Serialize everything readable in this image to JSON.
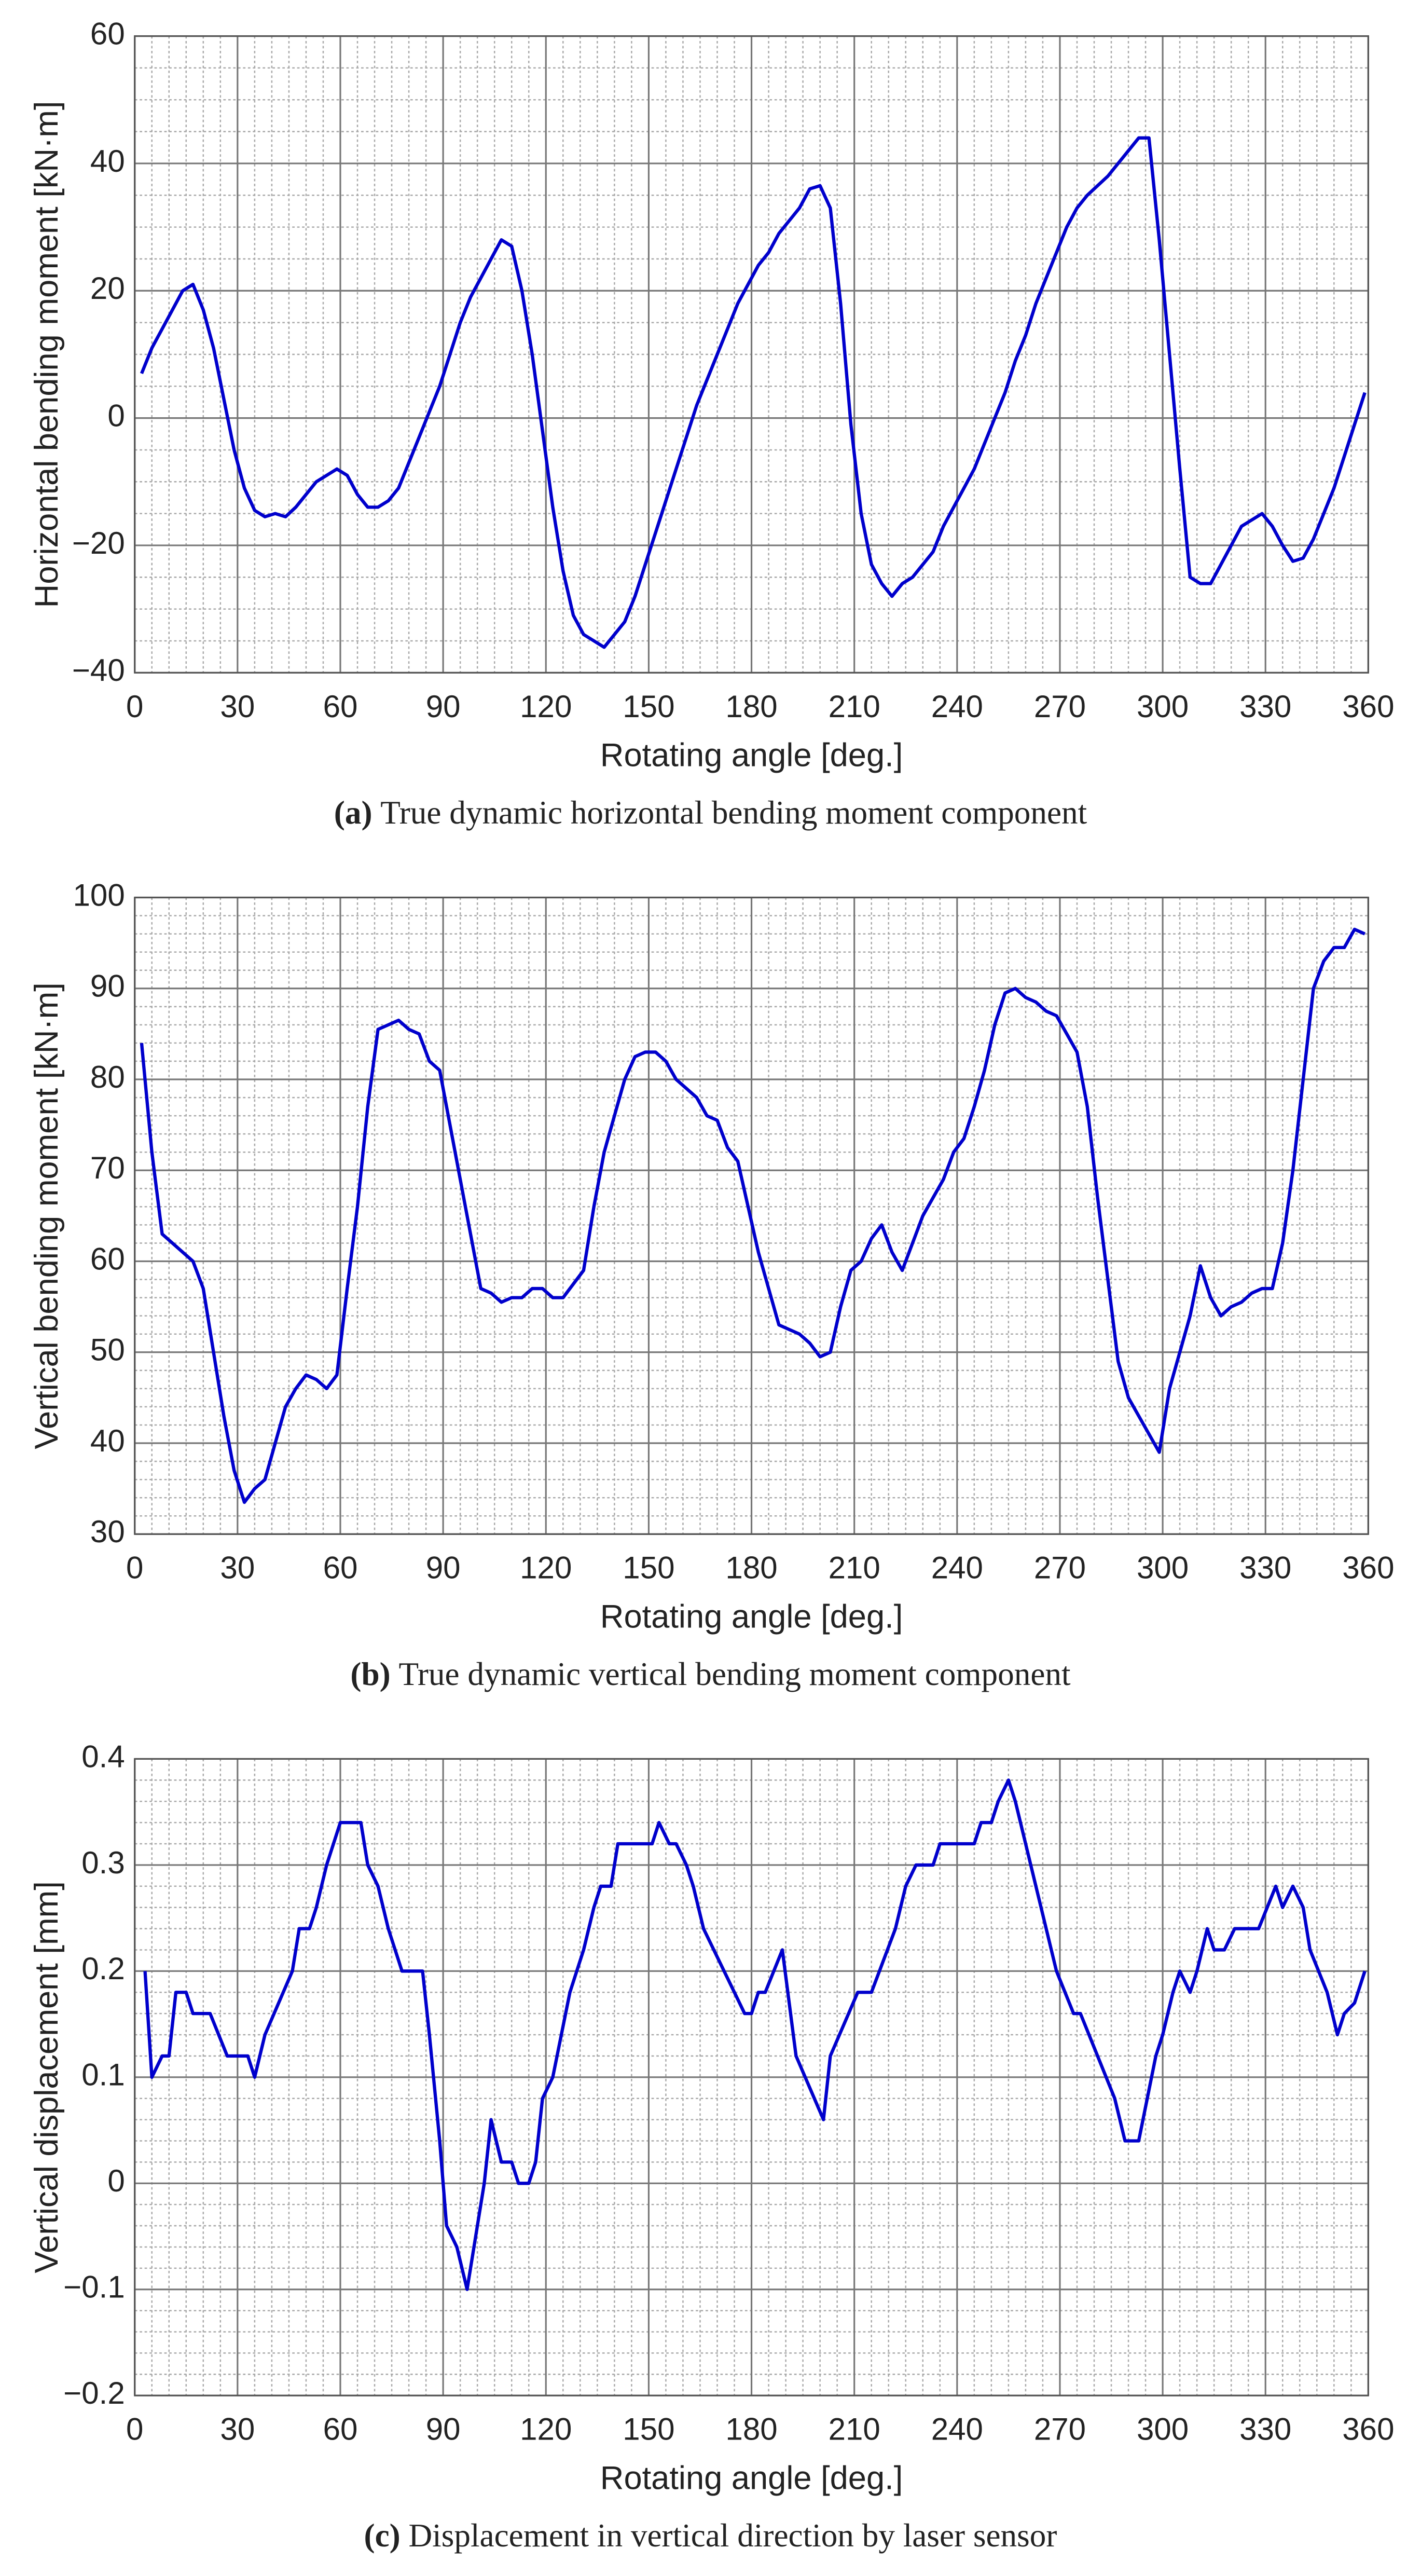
{
  "chart_data": [
    {
      "type": "line",
      "caption_label": "(a)",
      "caption": "True dynamic horizontal bending moment component",
      "xlabel": "Rotating angle [deg.]",
      "ylabel": "Horizontal bending moment [kN·m]",
      "xlim": [
        0,
        360
      ],
      "ylim": [
        -40,
        60
      ],
      "xticks": [
        0,
        30,
        60,
        90,
        120,
        150,
        180,
        210,
        240,
        270,
        300,
        330,
        360
      ],
      "yticks": [
        {
          "value": -40,
          "label": "−40"
        },
        {
          "value": -20,
          "label": "−20"
        },
        0,
        20,
        40,
        60
      ],
      "grid": true,
      "color": "#0000cc",
      "x": [
        2,
        5,
        8,
        11,
        14,
        17,
        20,
        23,
        26,
        29,
        32,
        35,
        38,
        41,
        44,
        47,
        50,
        53,
        56,
        59,
        62,
        65,
        68,
        71,
        74,
        77,
        80,
        83,
        86,
        89,
        92,
        95,
        98,
        101,
        104,
        107,
        110,
        113,
        116,
        119,
        122,
        125,
        128,
        131,
        134,
        137,
        140,
        143,
        146,
        149,
        152,
        155,
        158,
        161,
        164,
        167,
        170,
        173,
        176,
        179,
        182,
        185,
        188,
        191,
        194,
        197,
        200,
        203,
        206,
        209,
        212,
        215,
        218,
        221,
        224,
        227,
        230,
        233,
        236,
        239,
        242,
        245,
        248,
        251,
        254,
        257,
        260,
        263,
        266,
        269,
        272,
        275,
        278,
        281,
        284,
        287,
        290,
        293,
        296,
        299,
        302,
        305,
        308,
        311,
        314,
        317,
        320,
        323,
        326,
        329,
        332,
        335,
        338,
        341,
        344,
        347,
        350,
        353,
        356,
        359
      ],
      "values": [
        7,
        11,
        14,
        17,
        20,
        21,
        17,
        11,
        3,
        -5,
        -11,
        -14.5,
        -15.5,
        -15,
        -15.5,
        -14,
        -12,
        -10,
        -9,
        -8,
        -9,
        -12,
        -14,
        -14,
        -13,
        -11,
        -7,
        -3,
        1,
        5,
        10,
        15,
        19,
        22,
        25,
        28,
        27,
        20,
        10,
        -2,
        -14,
        -24,
        -31,
        -34,
        -35,
        -36,
        -34,
        -32,
        -28,
        -23,
        -18,
        -13,
        -8,
        -3,
        2,
        6,
        10,
        14,
        18,
        21,
        24,
        26,
        29,
        31,
        33,
        36,
        36.5,
        33,
        18,
        -1,
        -15,
        -23,
        -26,
        -28,
        -26,
        -25,
        -23,
        -21,
        -17,
        -14,
        -11,
        -8,
        -4,
        0,
        4,
        9,
        13,
        18,
        22,
        26,
        30,
        33,
        35,
        36.5,
        38,
        40,
        42,
        44,
        44,
        28,
        10,
        -8,
        -25,
        -26,
        -26,
        -23,
        -20,
        -17,
        -16,
        -15,
        -17,
        -20,
        -22.5,
        -22,
        -19,
        -15,
        -11,
        -6,
        -1,
        4
      ]
    },
    {
      "type": "line",
      "caption_label": "(b)",
      "caption": "True dynamic vertical bending moment component",
      "xlabel": "Rotating angle [deg.]",
      "ylabel": "Vertical bending moment [kN·m]",
      "xlim": [
        0,
        360
      ],
      "ylim": [
        30,
        100
      ],
      "xticks": [
        0,
        30,
        60,
        90,
        120,
        150,
        180,
        210,
        240,
        270,
        300,
        330,
        360
      ],
      "yticks": [
        30,
        40,
        50,
        60,
        70,
        80,
        90,
        100
      ],
      "grid": true,
      "color": "#0000cc",
      "x": [
        2,
        5,
        8,
        11,
        14,
        17,
        20,
        23,
        26,
        29,
        32,
        35,
        38,
        41,
        44,
        47,
        50,
        53,
        56,
        59,
        62,
        65,
        68,
        71,
        74,
        77,
        80,
        83,
        86,
        89,
        92,
        95,
        98,
        101,
        104,
        107,
        110,
        113,
        116,
        119,
        122,
        125,
        128,
        131,
        134,
        137,
        140,
        143,
        146,
        149,
        152,
        155,
        158,
        161,
        164,
        167,
        170,
        173,
        176,
        179,
        182,
        185,
        188,
        191,
        194,
        197,
        200,
        203,
        206,
        209,
        212,
        215,
        218,
        221,
        224,
        227,
        230,
        233,
        236,
        239,
        242,
        245,
        248,
        251,
        254,
        257,
        260,
        263,
        266,
        269,
        272,
        275,
        278,
        281,
        284,
        287,
        290,
        293,
        296,
        299,
        302,
        305,
        308,
        311,
        314,
        317,
        320,
        323,
        326,
        329,
        332,
        335,
        338,
        341,
        344,
        347,
        350,
        353,
        356,
        359
      ],
      "values": [
        84,
        72,
        63,
        62,
        61,
        60,
        57,
        50,
        43,
        37,
        33.5,
        35,
        36,
        40,
        44,
        46,
        47.5,
        47,
        46,
        47.5,
        57,
        66,
        77,
        85.5,
        86,
        86.5,
        85.5,
        85,
        82,
        81,
        75,
        69,
        63,
        57,
        56.5,
        55.5,
        56,
        56,
        57,
        57,
        56,
        56,
        57.5,
        59,
        66,
        72,
        76,
        80,
        82.5,
        83,
        83,
        82,
        80,
        79,
        78,
        76,
        75.5,
        72.5,
        71,
        66,
        61,
        57,
        53,
        52.5,
        52,
        51,
        49.5,
        50,
        55,
        59,
        60,
        62.5,
        64,
        61,
        59,
        62,
        65,
        67,
        69,
        72,
        73.5,
        77,
        81,
        86,
        89.5,
        90,
        89,
        88.5,
        87.5,
        87,
        85,
        83,
        77,
        67,
        58,
        49,
        45,
        43,
        41,
        39,
        46,
        50,
        54,
        59.5,
        56,
        54,
        55,
        55.5,
        56.5,
        57,
        57,
        62,
        70,
        80,
        90,
        93,
        94.5,
        94.5,
        96.5,
        96
      ]
    },
    {
      "type": "line",
      "caption_label": "(c)",
      "caption": "Displacement in vertical direction by laser sensor",
      "xlabel": "Rotating angle [deg.]",
      "ylabel": "Vertical displacement [mm]",
      "xlim": [
        0,
        360
      ],
      "ylim": [
        -0.2,
        0.4
      ],
      "xticks": [
        0,
        30,
        60,
        90,
        120,
        150,
        180,
        210,
        240,
        270,
        300,
        330,
        360
      ],
      "yticks": [
        {
          "value": -0.2,
          "label": "−0.2"
        },
        {
          "value": -0.1,
          "label": "−0.1"
        },
        0,
        0.1,
        0.2,
        0.3,
        0.4
      ],
      "grid": true,
      "color": "#0000cc",
      "x": [
        3,
        5,
        8,
        10,
        12,
        15,
        17,
        22,
        27,
        33,
        35,
        38,
        46,
        48,
        51,
        53,
        56,
        60,
        66,
        68,
        71,
        74,
        78,
        84,
        86,
        89,
        91,
        94,
        97,
        100,
        102,
        104,
        107,
        110,
        112,
        115,
        117,
        119,
        122,
        127,
        131,
        134,
        136,
        139,
        141,
        148,
        151,
        153,
        156,
        158,
        161,
        163,
        166,
        175,
        178,
        180,
        182,
        184,
        189,
        193,
        201,
        203,
        211,
        215,
        222,
        225,
        228,
        233,
        235,
        242,
        245,
        247,
        250,
        252,
        255,
        257,
        269,
        274,
        276,
        286,
        289,
        293,
        298,
        300,
        303,
        305,
        308,
        310,
        313,
        315,
        318,
        321,
        328,
        333,
        335,
        338,
        341,
        343,
        348,
        351,
        353,
        356,
        359
      ],
      "values": [
        0.2,
        0.1,
        0.12,
        0.12,
        0.18,
        0.18,
        0.16,
        0.16,
        0.12,
        0.12,
        0.1,
        0.14,
        0.2,
        0.24,
        0.24,
        0.26,
        0.3,
        0.34,
        0.34,
        0.3,
        0.28,
        0.24,
        0.2,
        0.2,
        0.14,
        0.04,
        -0.04,
        -0.06,
        -0.1,
        -0.04,
        0,
        0.06,
        0.02,
        0.02,
        0,
        0,
        0.02,
        0.08,
        0.1,
        0.18,
        0.22,
        0.26,
        0.28,
        0.28,
        0.32,
        0.32,
        0.32,
        0.34,
        0.32,
        0.32,
        0.3,
        0.28,
        0.24,
        0.18,
        0.16,
        0.16,
        0.18,
        0.18,
        0.22,
        0.12,
        0.06,
        0.12,
        0.18,
        0.18,
        0.24,
        0.28,
        0.3,
        0.3,
        0.32,
        0.32,
        0.32,
        0.34,
        0.34,
        0.36,
        0.38,
        0.36,
        0.2,
        0.16,
        0.16,
        0.08,
        0.04,
        0.04,
        0.12,
        0.14,
        0.18,
        0.2,
        0.18,
        0.2,
        0.24,
        0.22,
        0.22,
        0.24,
        0.24,
        0.28,
        0.26,
        0.28,
        0.26,
        0.22,
        0.18,
        0.14,
        0.16,
        0.17,
        0.2
      ]
    }
  ]
}
